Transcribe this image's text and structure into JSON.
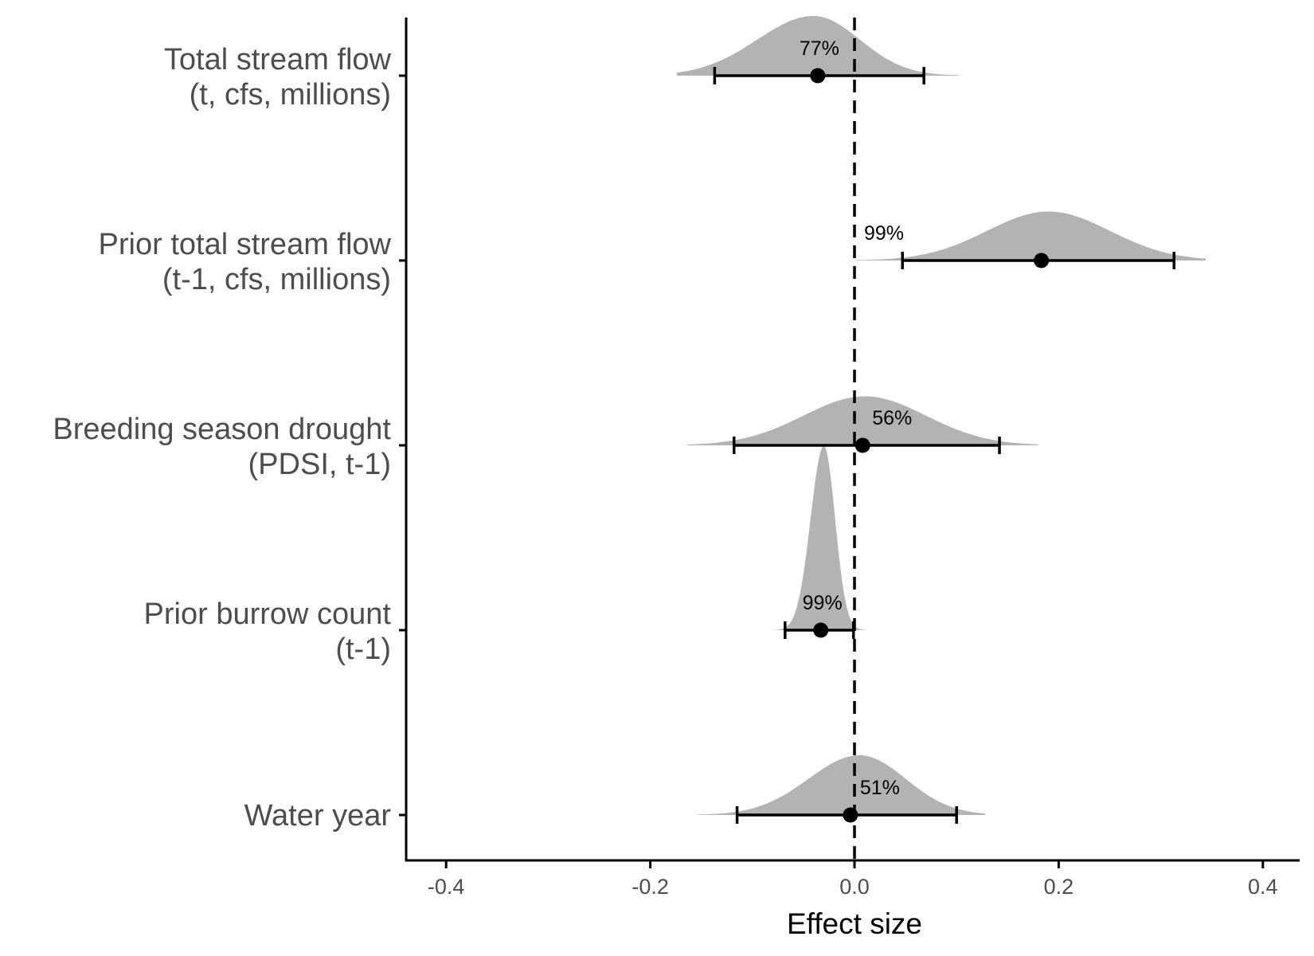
{
  "chart_data": {
    "type": "forest-density",
    "xlabel": "Effect size",
    "xlim": [
      -0.44,
      0.44
    ],
    "x_ticks": [
      "-0.4",
      "-0.2",
      "0.0",
      "0.2",
      "0.4"
    ],
    "x_tick_values": [
      -0.4,
      -0.2,
      0.0,
      0.2,
      0.4
    ],
    "reference_line": 0.0,
    "colors": {
      "density": "#b3b3b3",
      "point": "#000000",
      "reference": "#000000"
    },
    "rows": [
      {
        "label_lines": [
          "Total stream flow",
          "(t, cfs, millions)"
        ],
        "estimate": -0.036,
        "ci": [
          -0.137,
          0.068
        ],
        "probability": "77%",
        "density": {
          "min": -0.174,
          "max": 0.103,
          "mode": -0.04,
          "width_left": 0.055,
          "width_right": 0.045,
          "rel_height": 1.0
        }
      },
      {
        "label_lines": [
          "Prior total stream flow",
          "(t-1, cfs, millions)"
        ],
        "estimate": 0.183,
        "ci": [
          0.047,
          0.313
        ],
        "probability": "99%",
        "density": {
          "min": 0.0,
          "max": 0.344,
          "mode": 0.19,
          "width_left": 0.06,
          "width_right": 0.06,
          "rel_height": 0.82
        }
      },
      {
        "label_lines": [
          "Breeding season drought",
          "(PDSI, t-1)"
        ],
        "estimate": 0.008,
        "ci": [
          -0.118,
          0.142
        ],
        "probability": "56%",
        "density": {
          "min": -0.164,
          "max": 0.18,
          "mode": 0.01,
          "width_left": 0.06,
          "width_right": 0.06,
          "rel_height": 0.82
        }
      },
      {
        "label_lines": [
          "Prior burrow count",
          "(t-1)"
        ],
        "estimate": -0.033,
        "ci": [
          -0.068,
          -0.001
        ],
        "probability": "99%",
        "density": {
          "min": -0.095,
          "max": 0.016,
          "mode": -0.03,
          "width_left": 0.013,
          "width_right": 0.011,
          "rel_height": 3.08
        }
      },
      {
        "label_lines": [
          "Water year"
        ],
        "estimate": -0.004,
        "ci": [
          -0.115,
          0.1
        ],
        "probability": "51%",
        "density": {
          "min": -0.155,
          "max": 0.128,
          "mode": 0.005,
          "width_left": 0.05,
          "width_right": 0.045,
          "rel_height": 1.0
        }
      }
    ]
  }
}
